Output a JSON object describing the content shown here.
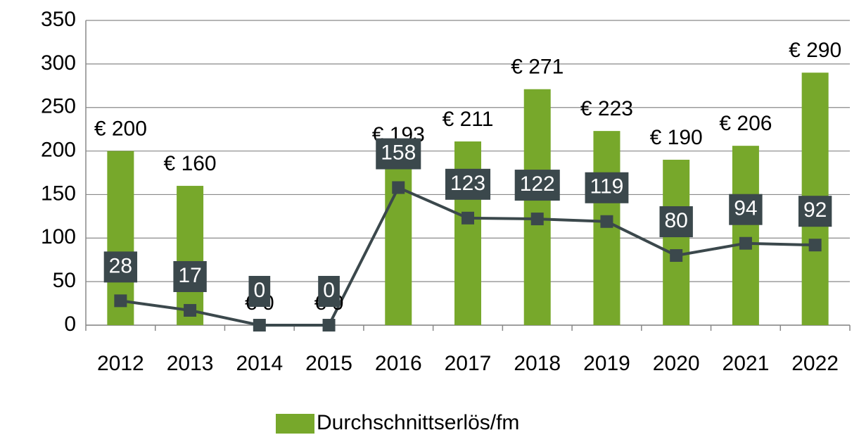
{
  "chart_data": {
    "type": "bar-line",
    "categories": [
      "2012",
      "2013",
      "2014",
      "2015",
      "2016",
      "2017",
      "2018",
      "2019",
      "2020",
      "2021",
      "2022"
    ],
    "series": [
      {
        "name": "Durchschnittserlös/fm",
        "type": "bar",
        "color": "#77a82b",
        "values": [
          200,
          160,
          0,
          0,
          193,
          211,
          271,
          223,
          190,
          206,
          290
        ],
        "value_labels": [
          "€ 200",
          "€ 160",
          "€ 0",
          "€ 0",
          "€ 193",
          "€ 211",
          "€ 271",
          "€ 223",
          "€ 190",
          "€ 206",
          "€ 290"
        ]
      },
      {
        "type": "line",
        "color": "#3b484c",
        "values": [
          28,
          17,
          0,
          0,
          158,
          123,
          122,
          119,
          80,
          94,
          92
        ]
      }
    ],
    "ylim": [
      0,
      350
    ],
    "yticks": [
      0,
      50,
      100,
      150,
      200,
      250,
      300,
      350
    ],
    "grid": true,
    "legend": "bottom"
  }
}
